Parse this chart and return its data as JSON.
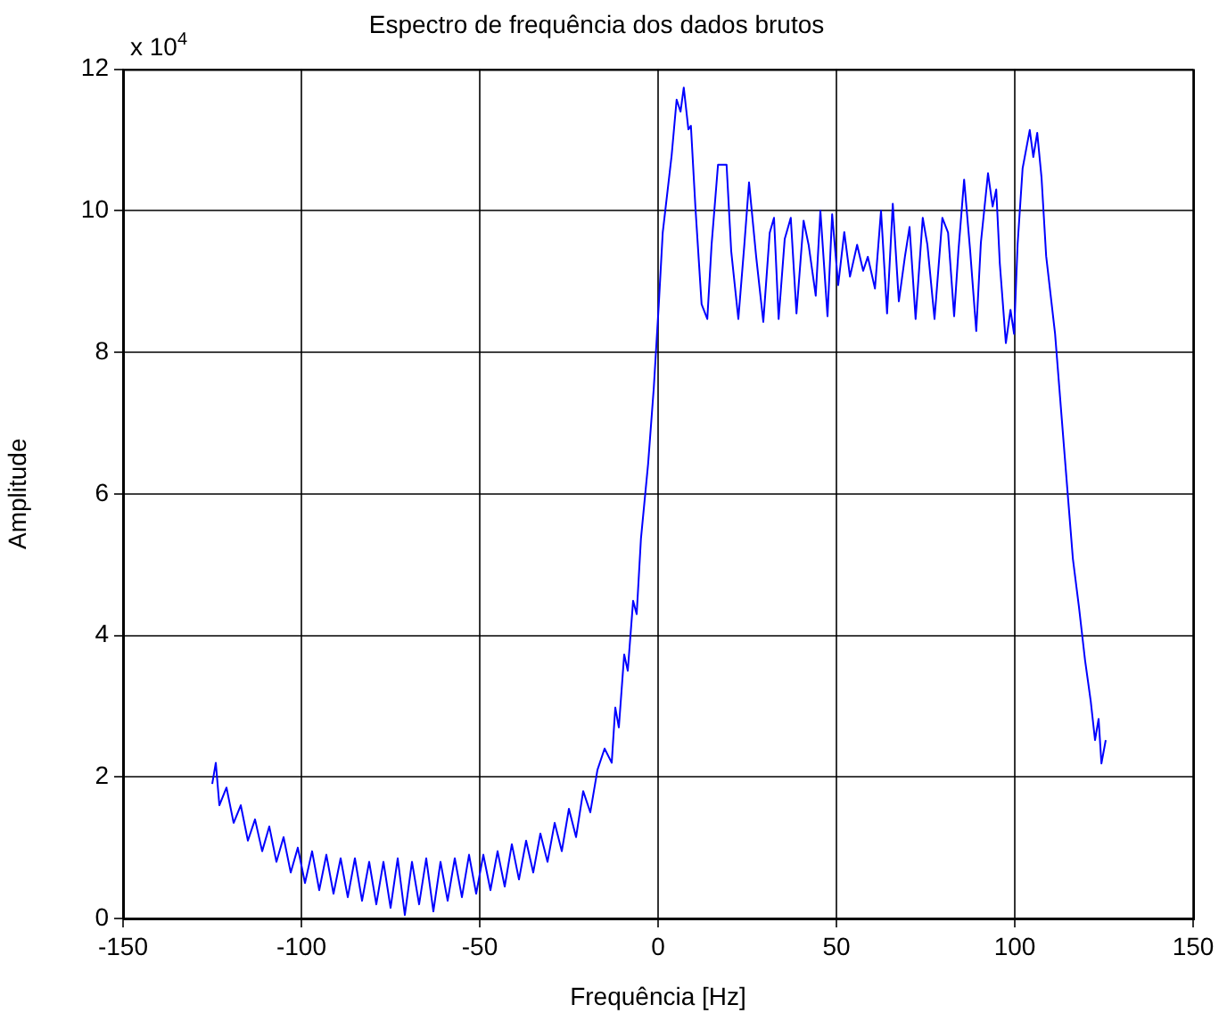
{
  "chart_data": {
    "type": "line",
    "title": "Espectro de frequência dos dados brutos",
    "xlabel": "Frequência [Hz]",
    "ylabel": "Amplitude",
    "annotations": [
      "x 10$^{4}$"
    ],
    "x": [
      -125,
      -124,
      -123,
      -121,
      -119,
      -117,
      -115,
      -113,
      -111,
      -109,
      -107,
      -105,
      -103,
      -101,
      -99,
      -97,
      -95,
      -93,
      -91,
      -89,
      -87,
      -85,
      -83,
      -81,
      -79,
      -77,
      -75,
      -73,
      -71,
      -69,
      -67,
      -65,
      -63,
      -61,
      -59,
      -57,
      -55,
      -53,
      -51,
      -49,
      -47,
      -45,
      -43,
      -41,
      -39,
      -37,
      -35,
      -33,
      -31,
      -29,
      -27,
      -25,
      -23,
      -21,
      -19,
      -17,
      -15,
      -13,
      -12,
      -11,
      -9.5,
      -8.5,
      -7,
      -6,
      -4.8,
      -2.8,
      -1.2,
      0.2,
      1.3,
      3.8,
      5.2,
      6.3,
      7.2,
      8.5,
      9.2,
      10.5,
      12.2,
      13.8,
      15,
      16.8,
      19.2,
      20.5,
      22.5,
      24.2,
      25.5,
      27.5,
      29.5,
      31.3,
      32.5,
      33.8,
      35.5,
      37.2,
      38.8,
      40.8,
      42.2,
      44.2,
      45.5,
      47.5,
      48.8,
      50.5,
      52.2,
      53.8,
      55.8,
      57.5,
      58.8,
      60.8,
      62.5,
      64.2,
      65.8,
      67.5,
      69.2,
      70.5,
      72.2,
      74.2,
      75.5,
      77.5,
      79.7,
      81.3,
      83,
      84.2,
      85.8,
      87.5,
      89.2,
      90.5,
      92.5,
      93.8,
      94.8,
      95.8,
      97.5,
      98.8,
      99.8,
      100.8,
      102.2,
      104.2,
      105.2,
      106.3,
      107.5,
      108.8,
      111.3,
      113,
      114.7,
      116.3,
      118,
      119.7,
      121.3,
      122.5,
      123.5,
      124.3,
      125.5
    ],
    "series": [
      {
        "color": "#0000ff",
        "values": [
          1.9,
          2.2,
          1.6,
          1.85,
          1.35,
          1.6,
          1.1,
          1.4,
          0.95,
          1.3,
          0.8,
          1.15,
          0.65,
          1.0,
          0.5,
          0.95,
          0.4,
          0.9,
          0.35,
          0.85,
          0.3,
          0.85,
          0.25,
          0.8,
          0.2,
          0.8,
          0.15,
          0.85,
          0.05,
          0.8,
          0.2,
          0.85,
          0.1,
          0.8,
          0.25,
          0.85,
          0.3,
          0.9,
          0.35,
          0.9,
          0.4,
          0.95,
          0.45,
          1.05,
          0.55,
          1.1,
          0.65,
          1.2,
          0.8,
          1.35,
          0.95,
          1.55,
          1.15,
          1.8,
          1.5,
          2.1,
          2.4,
          2.2,
          2.98,
          2.7,
          3.73,
          3.5,
          4.49,
          4.3,
          5.37,
          6.42,
          7.5,
          8.68,
          9.69,
          10.78,
          11.57,
          11.4,
          11.74,
          11.15,
          11.2,
          10.02,
          8.68,
          8.47,
          9.52,
          10.65,
          10.65,
          9.43,
          8.47,
          9.53,
          10.4,
          9.35,
          8.43,
          9.69,
          9.9,
          8.47,
          9.6,
          9.9,
          8.55,
          9.86,
          9.52,
          8.8,
          10,
          8.51,
          9.95,
          8.95,
          9.7,
          9.07,
          9.52,
          9.15,
          9.35,
          8.9,
          10,
          8.55,
          10.1,
          8.72,
          9.35,
          9.77,
          8.47,
          9.9,
          9.52,
          8.47,
          9.9,
          9.69,
          8.51,
          9.43,
          10.44,
          9.43,
          8.3,
          9.55,
          10.53,
          10.06,
          10.3,
          9.26,
          8.13,
          8.6,
          8.26,
          9.53,
          10.6,
          11.14,
          10.76,
          11.1,
          10.47,
          9.36,
          8.26,
          7.17,
          6.09,
          5.08,
          4.4,
          3.65,
          3.07,
          2.52,
          2.82,
          2.19,
          2.52
        ]
      }
    ],
    "xlim": [
      -150,
      150
    ],
    "xticks": [
      -150,
      -100,
      -50,
      0,
      50,
      100,
      150
    ],
    "ylim": [
      0,
      12
    ],
    "yticks": [
      0,
      2,
      4,
      6,
      8,
      10,
      12
    ],
    "grid": true,
    "legend": false,
    "line_style": "solid",
    "marker": "none"
  }
}
